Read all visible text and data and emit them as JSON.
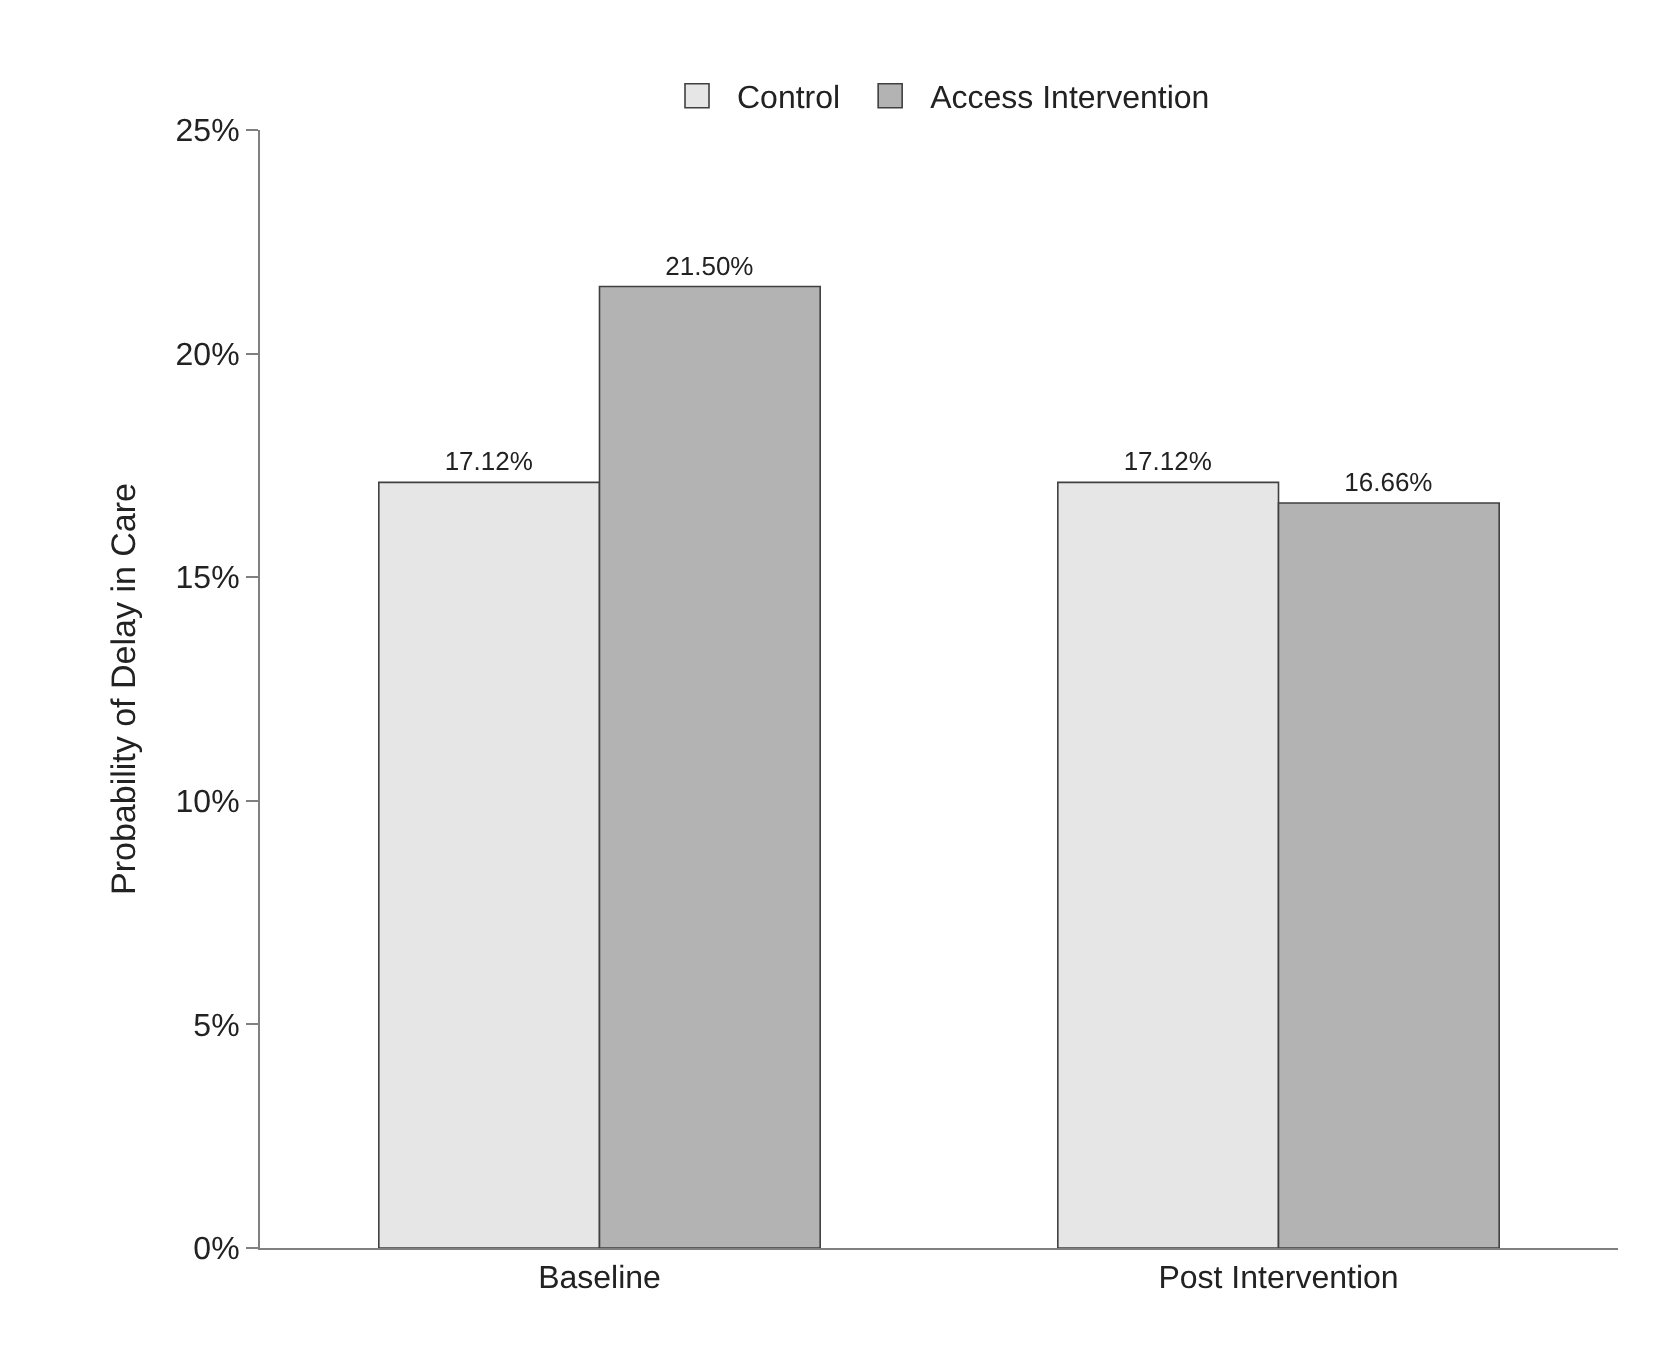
{
  "chart_data": {
    "type": "bar",
    "ylabel": "Probability of Delay in Care",
    "categories": [
      "Baseline",
      "Post Intervention"
    ],
    "series": [
      {
        "name": "Control",
        "color": "#e6e6e6",
        "values": [
          17.12,
          17.12
        ],
        "value_labels": [
          "17.12%",
          "17.12%"
        ]
      },
      {
        "name": "Access Intervention",
        "color": "#b3b3b3",
        "values": [
          21.5,
          16.66
        ],
        "value_labels": [
          "21.50%",
          "16.66%"
        ]
      }
    ],
    "ylim": [
      0,
      25
    ],
    "yticks": [
      {
        "value": 0,
        "label": "0%"
      },
      {
        "value": 5,
        "label": "5%"
      },
      {
        "value": 10,
        "label": "10%"
      },
      {
        "value": 15,
        "label": "15%"
      },
      {
        "value": 20,
        "label": "20%"
      },
      {
        "value": 25,
        "label": "25%"
      }
    ],
    "legend": "top"
  }
}
